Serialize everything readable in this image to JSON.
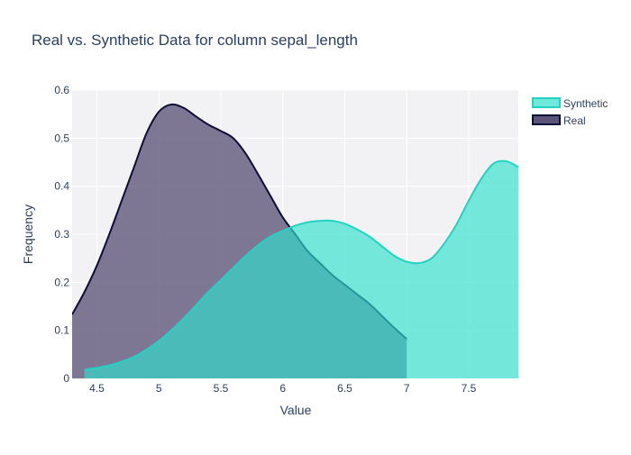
{
  "chart_data": {
    "type": "area",
    "title": "Real vs. Synthetic Data for column sepal_length",
    "xlabel": "Value",
    "ylabel": "Frequency",
    "xlim": [
      4.3,
      7.9
    ],
    "ylim": [
      0,
      0.6
    ],
    "x_ticks": [
      4.5,
      5,
      5.5,
      6,
      6.5,
      7,
      7.5
    ],
    "x_tick_labels": [
      "4.5",
      "5",
      "5.5",
      "6",
      "6.5",
      "7",
      "7.5"
    ],
    "y_ticks": [
      0,
      0.1,
      0.2,
      0.3,
      0.4,
      0.5,
      0.6
    ],
    "y_tick_labels": [
      "0",
      "0.1",
      "0.2",
      "0.3",
      "0.4",
      "0.5",
      "0.6"
    ],
    "grid": true,
    "legend_position": "top-right",
    "series": [
      {
        "name": "Real",
        "line_color": "#0d0d3a",
        "fill_color": "#5c5478",
        "fill_opacity": 0.78,
        "x": [
          4.3,
          4.4,
          4.5,
          4.6,
          4.7,
          4.8,
          4.9,
          5.0,
          5.1,
          5.2,
          5.3,
          5.4,
          5.5,
          5.6,
          5.7,
          5.8,
          5.9,
          6.0,
          6.1,
          6.2,
          6.3,
          6.4,
          6.5,
          6.6,
          6.7,
          6.8,
          6.9,
          7.0
        ],
        "values": [
          0.133,
          0.18,
          0.235,
          0.3,
          0.37,
          0.44,
          0.51,
          0.555,
          0.57,
          0.563,
          0.545,
          0.528,
          0.515,
          0.5,
          0.468,
          0.425,
          0.38,
          0.335,
          0.3,
          0.265,
          0.24,
          0.215,
          0.195,
          0.175,
          0.155,
          0.13,
          0.105,
          0.082
        ]
      },
      {
        "name": "Synthetic",
        "line_color": "#20d3c2",
        "fill_color": "#2fe0cc",
        "fill_opacity": 0.65,
        "x": [
          4.4,
          4.5,
          4.6,
          4.7,
          4.8,
          4.9,
          5.0,
          5.1,
          5.2,
          5.3,
          5.4,
          5.5,
          5.6,
          5.7,
          5.8,
          5.9,
          6.0,
          6.1,
          6.2,
          6.3,
          6.4,
          6.5,
          6.6,
          6.7,
          6.8,
          6.9,
          7.0,
          7.1,
          7.2,
          7.3,
          7.4,
          7.5,
          7.6,
          7.7,
          7.8,
          7.9
        ],
        "values": [
          0.018,
          0.022,
          0.027,
          0.035,
          0.045,
          0.06,
          0.078,
          0.1,
          0.125,
          0.152,
          0.18,
          0.205,
          0.23,
          0.255,
          0.277,
          0.295,
          0.307,
          0.318,
          0.325,
          0.328,
          0.328,
          0.322,
          0.31,
          0.295,
          0.275,
          0.255,
          0.243,
          0.24,
          0.25,
          0.28,
          0.32,
          0.37,
          0.415,
          0.447,
          0.452,
          0.44
        ]
      }
    ]
  },
  "legend": [
    {
      "name": "Synthetic",
      "line_color": "#20d3c2",
      "fill_color": "#6ee9dc"
    },
    {
      "name": "Real",
      "line_color": "#0d0d3a",
      "fill_color": "#5c5478"
    }
  ],
  "colors": {
    "plot_background": "#f2f2f5",
    "grid": "#ffffff",
    "text": "#2a3f5f"
  }
}
